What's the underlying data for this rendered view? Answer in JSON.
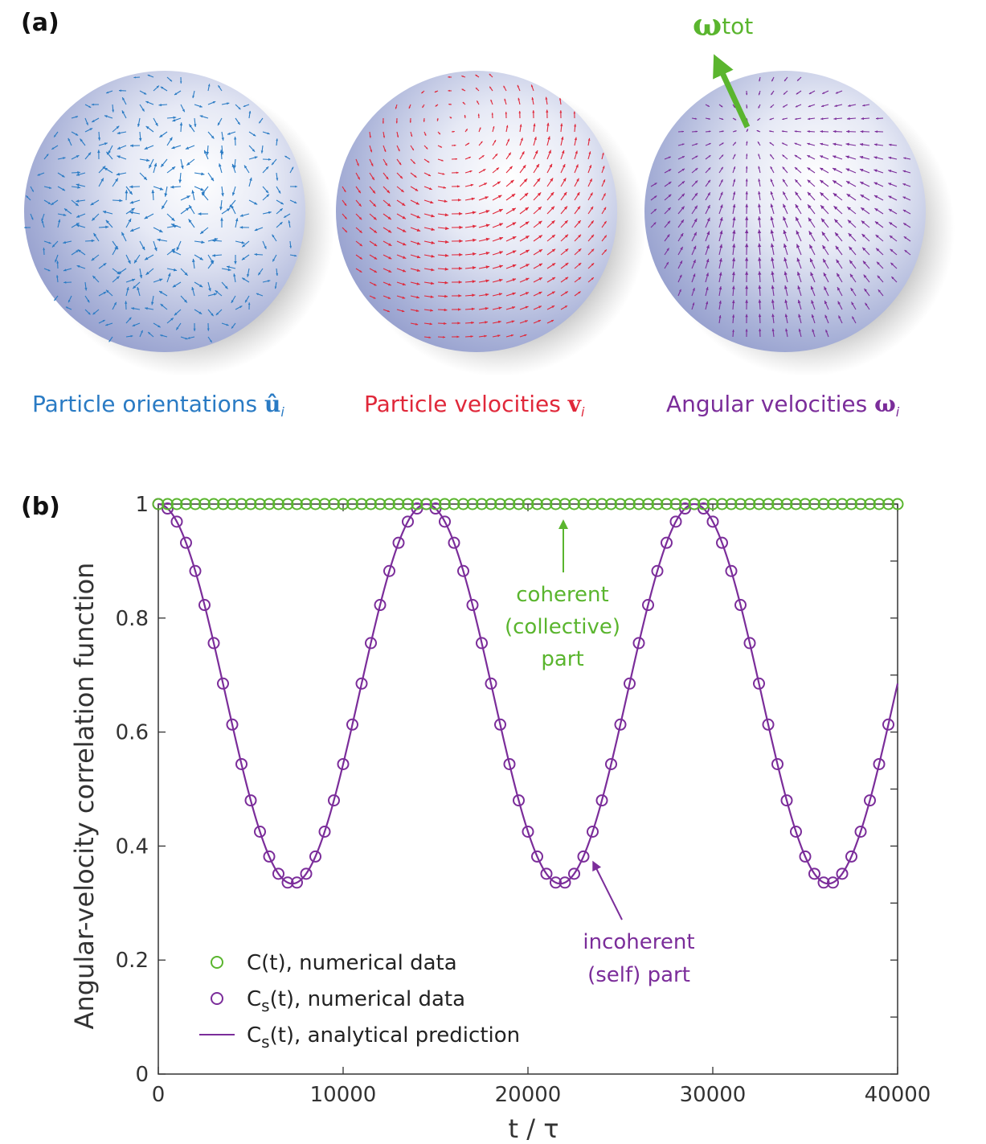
{
  "panel_a": {
    "label": "(a)",
    "omega_tot_label": "ω",
    "omega_tot_sub": "tot",
    "captions": [
      {
        "text": "Particle orientations ",
        "symbol": "û",
        "sub": "i",
        "color": "#2a7bc4"
      },
      {
        "text": "Particle velocities ",
        "symbol": "v",
        "sub": "i",
        "color": "#e0283a"
      },
      {
        "text": "Angular velocities ",
        "symbol": "ω",
        "sub": "i",
        "color": "#7b2d9a"
      }
    ],
    "colors": {
      "orientations": "#2a7bc4",
      "velocities": "#e0283a",
      "angular": "#7b2d9a",
      "omega_tot": "#5ab52e"
    }
  },
  "panel_b": {
    "label": "(b)",
    "annotations": {
      "coherent": [
        "coherent",
        "(collective)",
        "part"
      ],
      "incoherent": [
        "incoherent",
        "(self) part"
      ]
    }
  },
  "chart_data": {
    "type": "line",
    "xlabel": "t / τ",
    "ylabel": "Angular-velocity correlation function",
    "xlim": [
      0,
      40000
    ],
    "ylim": [
      0,
      1
    ],
    "x_ticks": [
      0,
      10000,
      20000,
      30000,
      40000
    ],
    "x_tick_labels": [
      "0",
      "10000",
      "20000",
      "30000",
      "40000"
    ],
    "y_ticks": [
      0,
      0.2,
      0.4,
      0.6,
      0.8,
      1
    ],
    "y_tick_labels": [
      "0",
      "0.2",
      "0.4",
      "0.6",
      "0.8",
      "1"
    ],
    "series": [
      {
        "name": "C(t), numerical data",
        "style": "markers",
        "color": "#5ab52e",
        "description": "constant at 1",
        "x_start": 0,
        "x_step": 500,
        "x_end": 40000,
        "value": 1.0
      },
      {
        "name": "C_s(t), numerical data",
        "style": "markers",
        "color": "#7b2d9a",
        "x_start": 0,
        "x_step": 500,
        "x_end": 39500,
        "model": {
          "mean": 0.667,
          "amplitude": 0.333,
          "period": 14500
        }
      },
      {
        "name": "C_s(t), analytical prediction",
        "style": "line",
        "color": "#7b2d9a",
        "model": {
          "mean": 0.667,
          "amplitude": 0.333,
          "period": 14500
        }
      }
    ],
    "legend": {
      "placement": "bottom-left",
      "entries": [
        {
          "label_main": "C(t), numerical data",
          "sub": "",
          "color": "#5ab52e",
          "kind": "marker"
        },
        {
          "label_main": "C",
          "sub": "s",
          "rest": "(t), numerical data",
          "color": "#7b2d9a",
          "kind": "marker"
        },
        {
          "label_main": "C",
          "sub": "s",
          "rest": "(t), analytical prediction",
          "color": "#7b2d9a",
          "kind": "line"
        }
      ]
    }
  }
}
